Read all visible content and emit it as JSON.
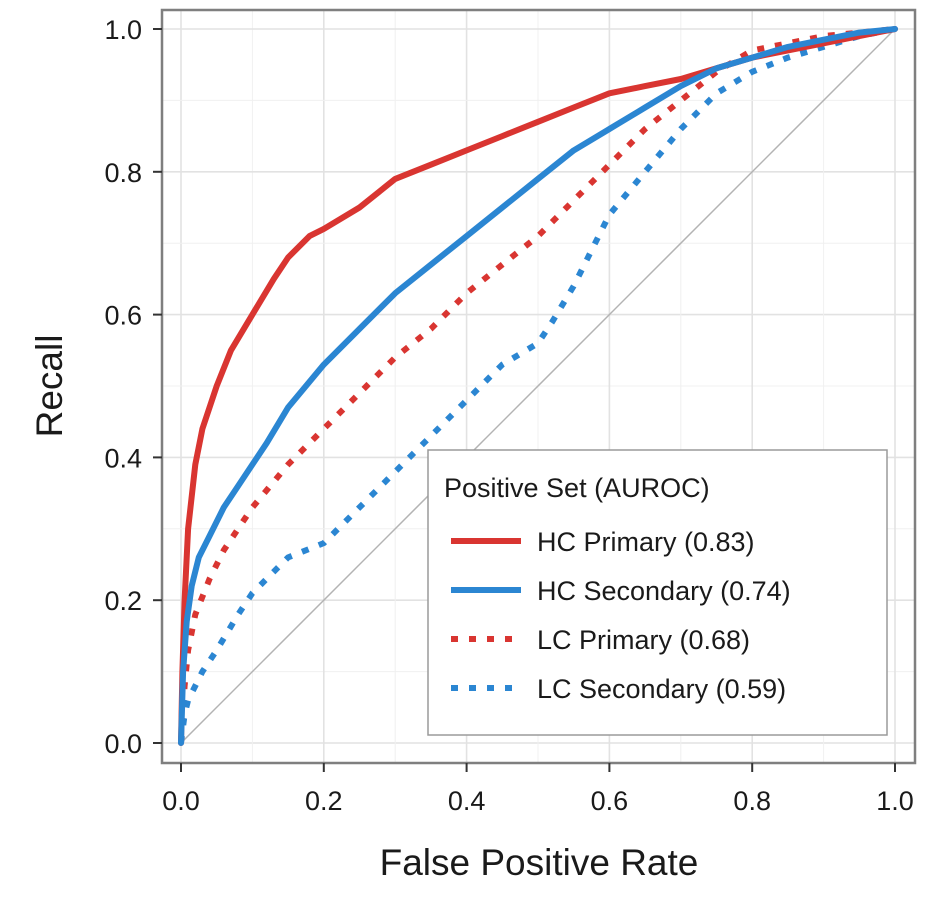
{
  "chart_data": {
    "type": "line",
    "title": "",
    "xlabel": "False Positive Rate",
    "ylabel": "Recall",
    "xlim": [
      0,
      1
    ],
    "ylim": [
      0,
      1
    ],
    "xticks": [
      "0.0",
      "0.2",
      "0.4",
      "0.6",
      "0.8",
      "1.0"
    ],
    "yticks": [
      "0.0",
      "0.2",
      "0.4",
      "0.6",
      "0.8",
      "1.0"
    ],
    "grid": true,
    "legend": {
      "title": "Positive Set (AUROC)",
      "placement": "bottom-right"
    },
    "reference_line": {
      "name": "chance",
      "x": [
        0,
        1
      ],
      "y": [
        0,
        1
      ],
      "color": "#b3b3b3"
    },
    "series": [
      {
        "name": "HC Primary (0.83)",
        "color": "#d93531",
        "style": "solid",
        "x": [
          0,
          0.002,
          0.005,
          0.01,
          0.02,
          0.03,
          0.05,
          0.07,
          0.1,
          0.13,
          0.15,
          0.18,
          0.2,
          0.25,
          0.3,
          0.35,
          0.4,
          0.45,
          0.5,
          0.55,
          0.6,
          0.65,
          0.7,
          0.75,
          0.8,
          0.85,
          0.9,
          0.95,
          1.0
        ],
        "y": [
          0,
          0.1,
          0.2,
          0.3,
          0.39,
          0.44,
          0.5,
          0.55,
          0.6,
          0.65,
          0.68,
          0.71,
          0.72,
          0.75,
          0.79,
          0.81,
          0.83,
          0.85,
          0.87,
          0.89,
          0.91,
          0.92,
          0.93,
          0.945,
          0.96,
          0.97,
          0.98,
          0.99,
          1.0
        ]
      },
      {
        "name": "HC Secondary (0.74)",
        "color": "#2b86d2",
        "style": "solid",
        "x": [
          0,
          0.003,
          0.008,
          0.015,
          0.025,
          0.04,
          0.06,
          0.08,
          0.1,
          0.12,
          0.15,
          0.2,
          0.25,
          0.3,
          0.35,
          0.4,
          0.45,
          0.5,
          0.55,
          0.6,
          0.65,
          0.7,
          0.75,
          0.8,
          0.85,
          0.9,
          0.95,
          1.0
        ],
        "y": [
          0,
          0.1,
          0.17,
          0.22,
          0.26,
          0.29,
          0.33,
          0.36,
          0.39,
          0.42,
          0.47,
          0.53,
          0.58,
          0.63,
          0.67,
          0.71,
          0.75,
          0.79,
          0.83,
          0.86,
          0.89,
          0.92,
          0.945,
          0.96,
          0.975,
          0.985,
          0.995,
          1.0
        ]
      },
      {
        "name": "LC Primary (0.68)",
        "color": "#d93531",
        "style": "dotted",
        "x": [
          0,
          0.005,
          0.01,
          0.02,
          0.04,
          0.06,
          0.1,
          0.15,
          0.2,
          0.25,
          0.3,
          0.35,
          0.4,
          0.45,
          0.5,
          0.55,
          0.6,
          0.65,
          0.7,
          0.75,
          0.8,
          0.85,
          0.9,
          0.95,
          1.0
        ],
        "y": [
          0,
          0.08,
          0.13,
          0.18,
          0.23,
          0.27,
          0.33,
          0.39,
          0.44,
          0.49,
          0.54,
          0.58,
          0.63,
          0.67,
          0.71,
          0.76,
          0.81,
          0.86,
          0.9,
          0.94,
          0.97,
          0.98,
          0.99,
          0.995,
          1.0
        ]
      },
      {
        "name": "LC Secondary (0.59)",
        "color": "#2b86d2",
        "style": "dotted",
        "x": [
          0,
          0.005,
          0.01,
          0.02,
          0.03,
          0.05,
          0.08,
          0.1,
          0.15,
          0.2,
          0.25,
          0.3,
          0.35,
          0.4,
          0.45,
          0.5,
          0.52,
          0.55,
          0.58,
          0.6,
          0.65,
          0.7,
          0.75,
          0.8,
          0.85,
          0.9,
          0.95,
          1.0
        ],
        "y": [
          0,
          0.04,
          0.06,
          0.08,
          0.1,
          0.13,
          0.18,
          0.21,
          0.26,
          0.28,
          0.33,
          0.38,
          0.43,
          0.48,
          0.53,
          0.56,
          0.59,
          0.64,
          0.7,
          0.74,
          0.8,
          0.86,
          0.91,
          0.94,
          0.96,
          0.975,
          0.99,
          1.0
        ]
      }
    ]
  }
}
